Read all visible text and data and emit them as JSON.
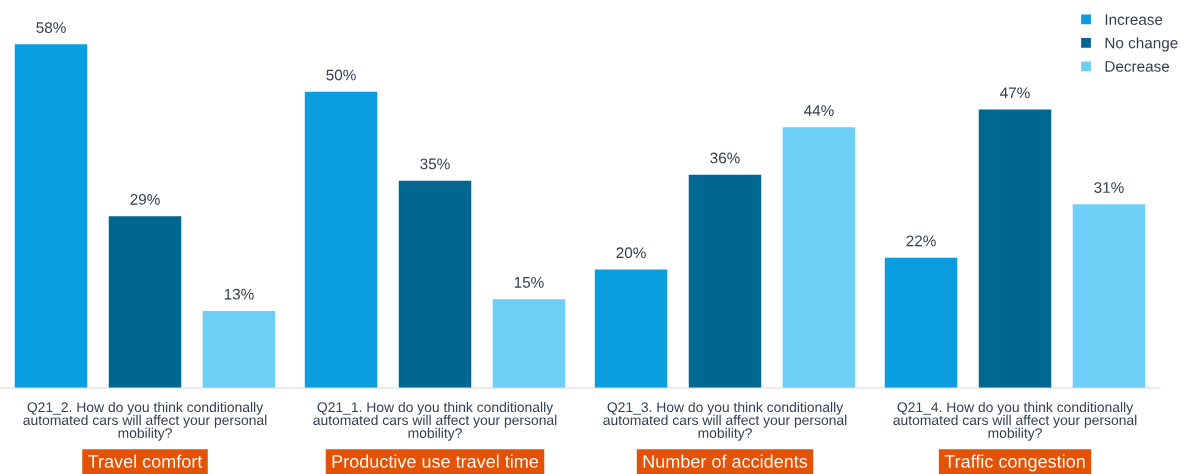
{
  "chart_data": {
    "type": "bar",
    "categories": [
      "Q21_2. How do you think conditionally\nautomated cars will affect your personal\nmobility?",
      "Q21_1. How do you think conditionally\nautomated cars will affect your personal\nmobility?",
      "Q21_3. How do you think conditionally\nautomated cars will affect your personal\nmobility?",
      "Q21_4. How do you think conditionally\nautomated cars will affect your personal\nmobility?"
    ],
    "series": [
      {
        "name": "Increase",
        "color": "#0a9ee0",
        "values": [
          58,
          50,
          20,
          22
        ],
        "value_labels": [
          "58%",
          "50%",
          "20%",
          "22%"
        ]
      },
      {
        "name": "No change",
        "color": "#006890",
        "values": [
          29,
          35,
          36,
          47
        ],
        "value_labels": [
          "29%",
          "35%",
          "36%",
          "47%"
        ]
      },
      {
        "name": "Decrease",
        "color": "#6dcff6",
        "values": [
          13,
          15,
          44,
          31
        ],
        "value_labels": [
          "13%",
          "15%",
          "44%",
          "31%"
        ]
      }
    ],
    "annotations": [
      "Travel comfort",
      "Productive use travel time",
      "Number of accidents",
      "Traffic congestion"
    ],
    "legend": "top right",
    "grid": false
  }
}
